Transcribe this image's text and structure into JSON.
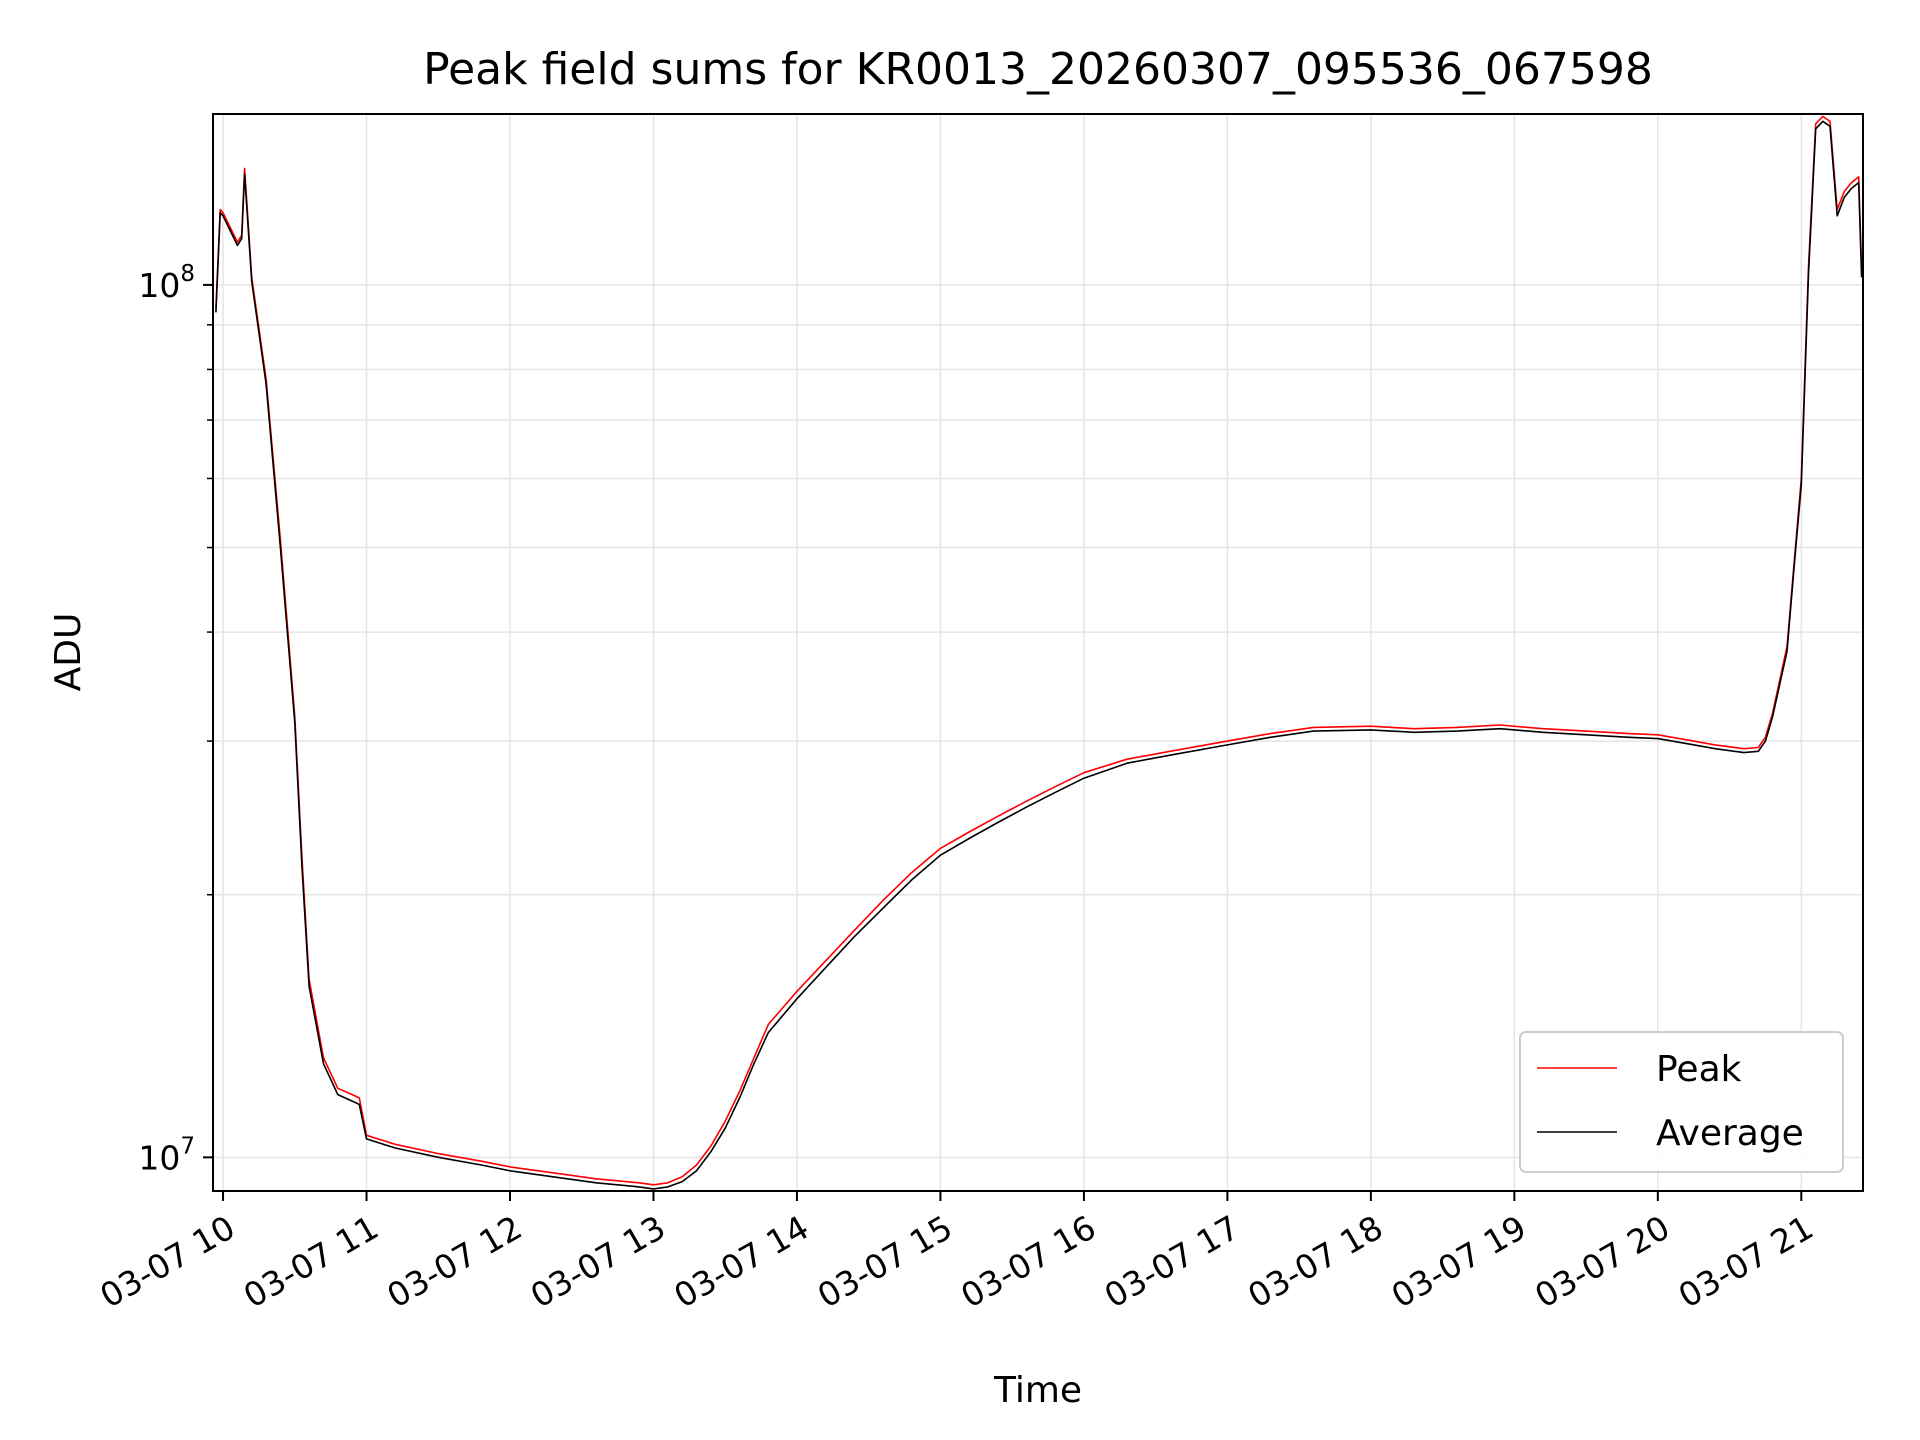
{
  "chart_data": {
    "type": "line",
    "title": "Peak field sums for KR0013_20260307_095536_067598",
    "xlabel": "Time",
    "ylabel": "ADU",
    "yscale": "log",
    "grid": true,
    "legend_position": "lower-right",
    "xlim": [
      9.93,
      21.43
    ],
    "ylim": [
      9150000,
      157000000
    ],
    "x_unit": "hours on 03-07",
    "x_ticks": [
      10,
      11,
      12,
      13,
      14,
      15,
      16,
      17,
      18,
      19,
      20,
      21
    ],
    "x_tick_labels": [
      "03-07 10",
      "03-07 11",
      "03-07 12",
      "03-07 13",
      "03-07 14",
      "03-07 15",
      "03-07 16",
      "03-07 17",
      "03-07 18",
      "03-07 19",
      "03-07 20",
      "03-07 21"
    ],
    "y_major_ticks": [
      {
        "value": 10000000,
        "base": "10",
        "exp": "7"
      },
      {
        "value": 100000000,
        "base": "10",
        "exp": "8"
      }
    ],
    "y_minor_ticks": [
      20000000,
      30000000,
      40000000,
      50000000,
      60000000,
      70000000,
      80000000,
      90000000
    ],
    "series": [
      {
        "name": "Peak",
        "color": "#ff0000",
        "x": [
          9.95,
          9.98,
          10.0,
          10.1,
          10.13,
          10.15,
          10.2,
          10.3,
          10.4,
          10.5,
          10.55,
          10.6,
          10.7,
          10.8,
          10.9,
          10.95,
          11.0,
          11.2,
          11.5,
          11.8,
          12.0,
          12.3,
          12.6,
          12.9,
          13.0,
          13.1,
          13.2,
          13.3,
          13.4,
          13.5,
          13.6,
          13.7,
          13.8,
          14.0,
          14.2,
          14.4,
          14.6,
          14.8,
          15.0,
          15.2,
          15.4,
          15.6,
          15.8,
          16.0,
          16.3,
          16.6,
          17.0,
          17.3,
          17.6,
          18.0,
          18.3,
          18.6,
          18.9,
          19.2,
          19.5,
          19.8,
          20.0,
          20.2,
          20.4,
          20.6,
          20.7,
          20.75,
          20.8,
          20.9,
          20.95,
          21.0,
          21.05,
          21.1,
          21.15,
          21.2,
          21.25,
          21.3,
          21.35,
          21.4,
          21.42
        ],
        "y": [
          94000000,
          122000000,
          121000000,
          112000000,
          114000000,
          136000000,
          102000000,
          78000000,
          51000000,
          32000000,
          22000000,
          16000000,
          13000000,
          12000000,
          11800000,
          11700000,
          10600000,
          10350000,
          10100000,
          9900000,
          9750000,
          9600000,
          9450000,
          9350000,
          9300000,
          9350000,
          9500000,
          9800000,
          10300000,
          11000000,
          11900000,
          13000000,
          14200000,
          15500000,
          16800000,
          18200000,
          19700000,
          21200000,
          22600000,
          23600000,
          24600000,
          25600000,
          26600000,
          27600000,
          28600000,
          29200000,
          30000000,
          30600000,
          31100000,
          31200000,
          31000000,
          31100000,
          31300000,
          31000000,
          30800000,
          30600000,
          30500000,
          30100000,
          29700000,
          29400000,
          29500000,
          30300000,
          32300000,
          38500000,
          48000000,
          60000000,
          105000000,
          153000000,
          156000000,
          154000000,
          122000000,
          128000000,
          131000000,
          133000000,
          104000000
        ]
      },
      {
        "name": "Average",
        "color": "#000000",
        "x": [
          9.95,
          9.98,
          10.0,
          10.1,
          10.13,
          10.15,
          10.2,
          10.3,
          10.4,
          10.5,
          10.55,
          10.6,
          10.7,
          10.8,
          10.9,
          10.95,
          11.0,
          11.2,
          11.5,
          11.8,
          12.0,
          12.3,
          12.6,
          12.9,
          13.0,
          13.1,
          13.2,
          13.3,
          13.4,
          13.5,
          13.6,
          13.7,
          13.8,
          14.0,
          14.2,
          14.4,
          14.6,
          14.8,
          15.0,
          15.2,
          15.4,
          15.6,
          15.8,
          16.0,
          16.3,
          16.6,
          17.0,
          17.3,
          17.6,
          18.0,
          18.3,
          18.6,
          18.9,
          19.2,
          19.5,
          19.8,
          20.0,
          20.2,
          20.4,
          20.6,
          20.7,
          20.75,
          20.8,
          20.9,
          20.95,
          21.0,
          21.05,
          21.1,
          21.15,
          21.2,
          21.25,
          21.3,
          21.35,
          21.4,
          21.42
        ],
        "y": [
          93000000,
          121000000,
          120000000,
          111000000,
          113000000,
          134000000,
          101000000,
          77000000,
          50000000,
          31500000,
          21500000,
          15700000,
          12800000,
          11800000,
          11600000,
          11500000,
          10500000,
          10250000,
          10000000,
          9800000,
          9650000,
          9500000,
          9350000,
          9250000,
          9200000,
          9250000,
          9380000,
          9650000,
          10150000,
          10800000,
          11700000,
          12800000,
          13900000,
          15200000,
          16500000,
          17900000,
          19300000,
          20800000,
          22200000,
          23200000,
          24200000,
          25200000,
          26200000,
          27200000,
          28300000,
          28900000,
          29700000,
          30300000,
          30800000,
          30900000,
          30700000,
          30800000,
          31000000,
          30700000,
          30500000,
          30300000,
          30200000,
          29800000,
          29400000,
          29100000,
          29200000,
          30000000,
          32000000,
          38000000,
          47500000,
          59000000,
          103000000,
          151000000,
          154000000,
          152000000,
          120000000,
          126000000,
          129000000,
          131000000,
          102000000
        ]
      }
    ]
  }
}
